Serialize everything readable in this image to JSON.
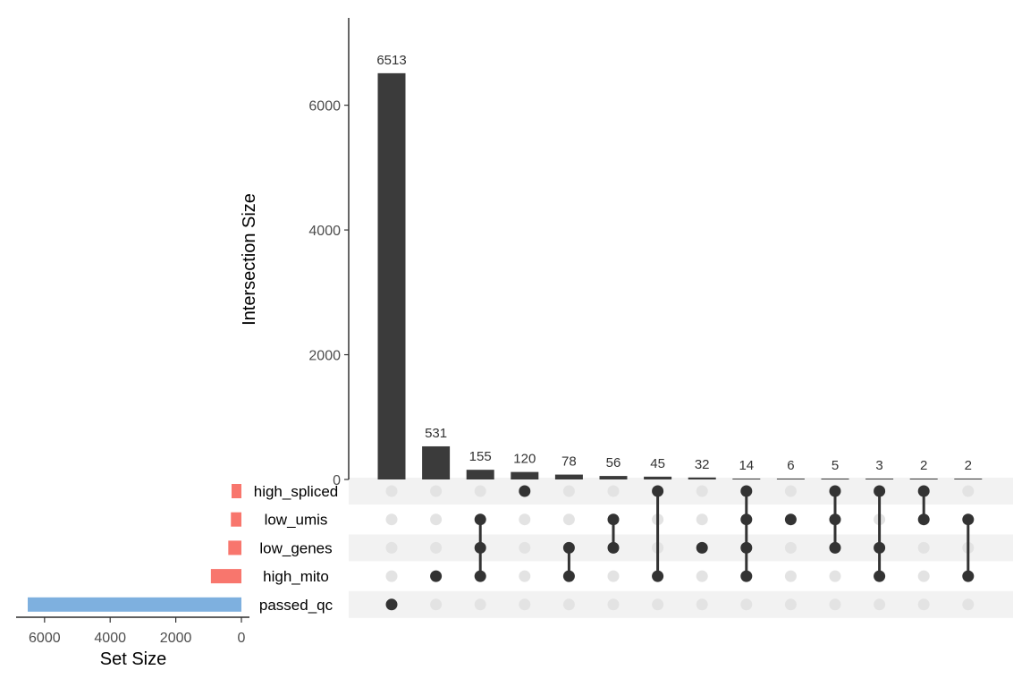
{
  "chart_data": {
    "type": "bar",
    "subtype": "upset",
    "ylabel": "Intersection Size",
    "ylim": [
      0,
      7400
    ],
    "yticks": [
      0,
      2000,
      4000,
      6000
    ],
    "ytick_labels": [
      "0",
      "2000",
      "4000",
      "6000"
    ],
    "intersections": [
      {
        "value": 6513,
        "label": "6513",
        "sets": [
          "passed_qc"
        ]
      },
      {
        "value": 531,
        "label": "531",
        "sets": [
          "high_mito"
        ]
      },
      {
        "value": 155,
        "label": "155",
        "sets": [
          "low_umis",
          "low_genes",
          "high_mito"
        ]
      },
      {
        "value": 120,
        "label": "120",
        "sets": [
          "high_spliced"
        ]
      },
      {
        "value": 78,
        "label": "78",
        "sets": [
          "low_genes",
          "high_mito"
        ]
      },
      {
        "value": 56,
        "label": "56",
        "sets": [
          "low_umis",
          "low_genes"
        ]
      },
      {
        "value": 45,
        "label": "45",
        "sets": [
          "high_spliced",
          "high_mito"
        ]
      },
      {
        "value": 32,
        "label": "32",
        "sets": [
          "low_genes"
        ]
      },
      {
        "value": 14,
        "label": "14",
        "sets": [
          "high_spliced",
          "low_umis",
          "low_genes",
          "high_mito"
        ]
      },
      {
        "value": 6,
        "label": "6",
        "sets": [
          "low_umis"
        ]
      },
      {
        "value": 5,
        "label": "5",
        "sets": [
          "high_spliced",
          "low_umis",
          "low_genes"
        ]
      },
      {
        "value": 3,
        "label": "3",
        "sets": [
          "high_spliced",
          "low_genes",
          "high_mito"
        ]
      },
      {
        "value": 2,
        "label": "2",
        "sets": [
          "high_spliced",
          "low_umis"
        ]
      },
      {
        "value": 2,
        "label": "2",
        "sets": [
          "low_umis",
          "high_mito"
        ]
      }
    ],
    "sets": [
      {
        "name": "high_spliced",
        "size": 300,
        "color": "#f8766d"
      },
      {
        "name": "low_umis",
        "size": 320,
        "color": "#f8766d"
      },
      {
        "name": "low_genes",
        "size": 400,
        "color": "#f8766d"
      },
      {
        "name": "high_mito",
        "size": 930,
        "color": "#f8766d"
      },
      {
        "name": "passed_qc",
        "size": 6513,
        "color": "#7eb0df"
      }
    ],
    "set_size_axis": {
      "xlabel": "Set Size",
      "ticks": [
        6000,
        4000,
        2000,
        0
      ],
      "tick_labels": [
        "6000",
        "4000",
        "2000",
        "0"
      ],
      "xlim": [
        0,
        6800
      ],
      "reversed": true
    },
    "colors": {
      "bar": "#3b3b3b",
      "dot_active": "#333333",
      "dot_inactive": "#e3e3e3",
      "stripe": "#f2f2f2"
    }
  }
}
